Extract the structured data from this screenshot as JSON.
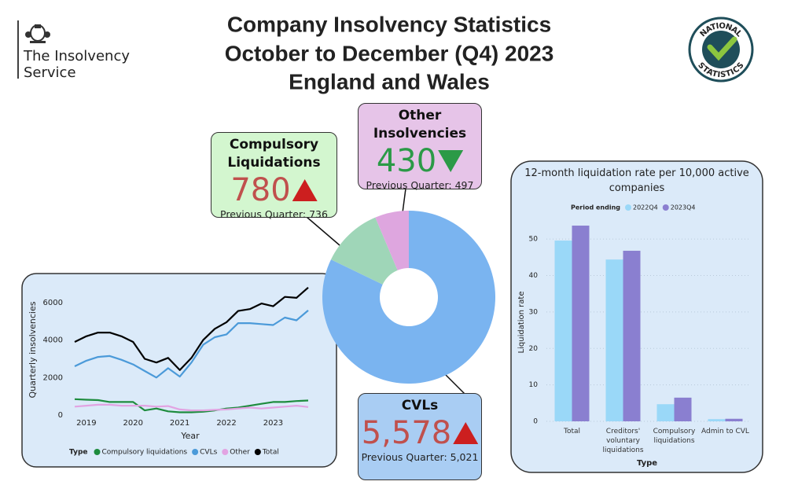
{
  "header": {
    "title": [
      "Company Insolvency Statistics",
      "October to December (Q4) 2023",
      "England and Wales"
    ],
    "org": [
      "The Insolvency",
      "Service"
    ],
    "badge": [
      "NATIONAL",
      "STATISTICS"
    ]
  },
  "chart_data": [
    {
      "type": "line",
      "x_title": "Year",
      "y_title": "Quarterly insolvencies",
      "legend_title": "Type",
      "categories": [
        null,
        "2019",
        null,
        null,
        null,
        "2020",
        null,
        null,
        null,
        "2021",
        null,
        null,
        null,
        "2022",
        null,
        null,
        null,
        "2023",
        null,
        null,
        null
      ],
      "series": [
        {
          "name": "Compulsory liquidations",
          "color": "#1e8c3e",
          "values": [
            850,
            820,
            800,
            700,
            700,
            700,
            250,
            350,
            200,
            150,
            150,
            180,
            250,
            350,
            400,
            500,
            600,
            700,
            700,
            750,
            780
          ]
        },
        {
          "name": "CVLs",
          "color": "#4b9ad9",
          "values": [
            2600,
            2900,
            3100,
            3150,
            2950,
            2700,
            2350,
            2000,
            2500,
            2050,
            2800,
            3750,
            4150,
            4300,
            4900,
            4900,
            4850,
            4800,
            5200,
            5050,
            5578
          ]
        },
        {
          "name": "Other",
          "color": "#e2a3e2",
          "values": [
            450,
            500,
            550,
            550,
            500,
            500,
            500,
            450,
            480,
            300,
            250,
            250,
            280,
            300,
            350,
            400,
            350,
            400,
            450,
            500,
            430
          ]
        },
        {
          "name": "Total",
          "color": "#000000",
          "values": [
            3900,
            4200,
            4400,
            4400,
            4200,
            3900,
            3000,
            2800,
            3050,
            2400,
            3050,
            4000,
            4600,
            4950,
            5550,
            5650,
            5950,
            5800,
            6300,
            6250,
            6800
          ]
        }
      ],
      "ylim": [
        -500,
        7000
      ],
      "yticks": [
        0,
        2000,
        4000,
        6000
      ]
    },
    {
      "type": "pie",
      "categories": [
        "CVLs",
        "Compulsory Liquidations",
        "Other Insolvencies"
      ],
      "values": [
        5578,
        780,
        430
      ],
      "value_labels": [
        "5,578",
        "780",
        "430"
      ],
      "previous": [
        "Previous Quarter: 5,021",
        "Previous Quarter: 736",
        "Previous Quarter: 497"
      ],
      "trend": [
        "up",
        "up",
        "down"
      ],
      "colors": [
        "#7ab4f0",
        "#9fd6b8",
        "#dea6df"
      ],
      "trend_colors": {
        "up": "#cc1f1f",
        "down": "#2b9a47"
      },
      "value_colors": {
        "up": "#c0504d",
        "down": "#2b9a47"
      }
    },
    {
      "type": "bar",
      "title": "12-month liquidation rate per 10,000 active companies",
      "x_title": "Type",
      "y_title": "Liquidation rate",
      "legend_title": "Period ending",
      "categories": [
        "Total",
        "Creditors' voluntary liquidations",
        "Compulsory liquidations",
        "Admin to CVL"
      ],
      "series": [
        {
          "name": "2022Q4",
          "color": "#9ad8f8",
          "values": [
            49.6,
            44.4,
            4.7,
            0.6
          ]
        },
        {
          "name": "2023Q4",
          "color": "#8a7fd0",
          "values": [
            53.7,
            46.8,
            6.5,
            0.7
          ]
        }
      ],
      "ylim": [
        0,
        55
      ],
      "yticks": [
        0,
        10,
        20,
        30,
        40,
        50
      ],
      "grid": true
    }
  ]
}
